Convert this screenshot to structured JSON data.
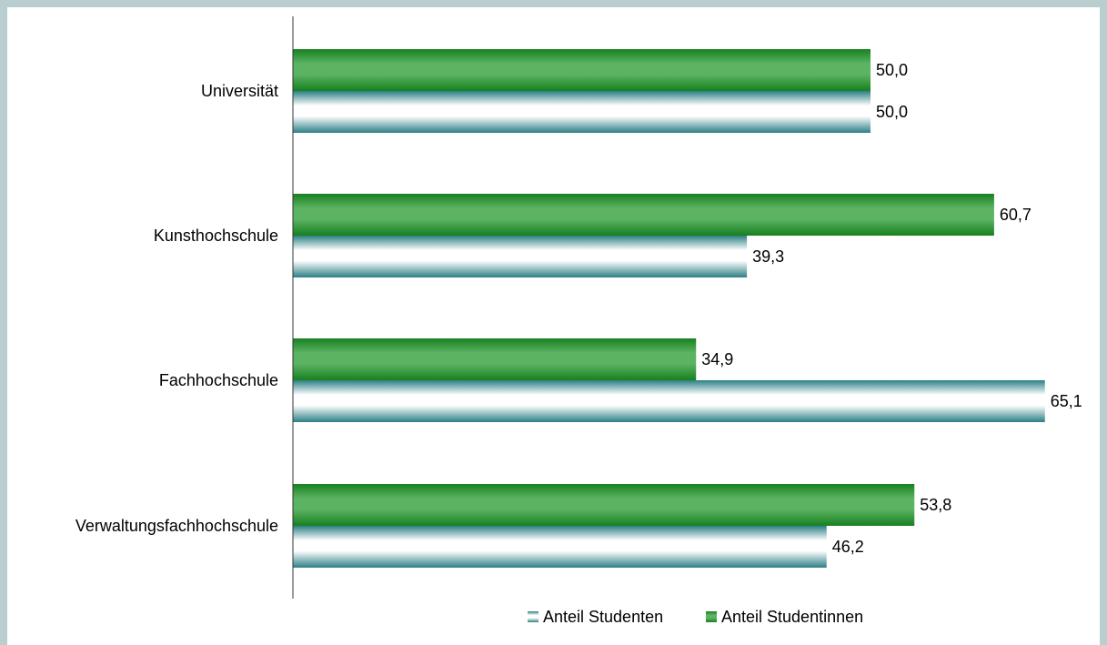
{
  "chart_data": {
    "type": "bar",
    "orientation": "horizontal",
    "categories": [
      "Universität",
      "Kunsthochschule",
      "Fachhochschule",
      "Verwaltungsfachhochschule"
    ],
    "series": [
      {
        "name": "Anteil Studentinnen",
        "values": [
          50.0,
          60.7,
          34.9,
          53.8
        ],
        "labels": [
          "50,0",
          "60,7",
          "34,9",
          "53,8"
        ],
        "color": "#2f9a3a"
      },
      {
        "name": "Anteil Studenten",
        "values": [
          50.0,
          39.3,
          65.1,
          46.2
        ],
        "labels": [
          "50,0",
          "39,3",
          "65,1",
          "46,2"
        ],
        "color": "#2b7f84"
      }
    ],
    "xlim": [
      0,
      70
    ],
    "grid": false,
    "legend_position": "bottom"
  },
  "colors": {
    "background": "#b9cfcf",
    "plot": "#ffffff",
    "female": "#2f9a3a",
    "male": "#2b7f84"
  }
}
